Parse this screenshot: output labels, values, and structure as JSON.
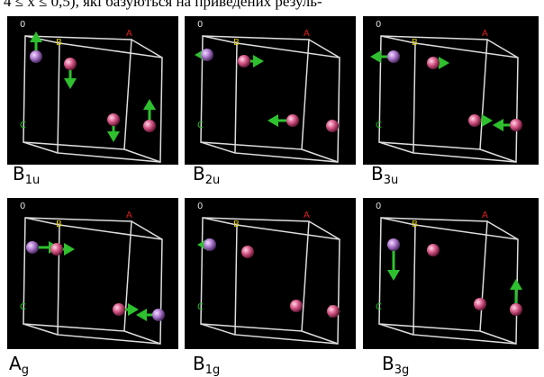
{
  "top_text": "4 ≤ x ≤ 0,5), які базуються на приведених резуль-",
  "axis_letters": {
    "origin": "0",
    "b": "B",
    "a": "A",
    "c": "C"
  },
  "panels": [
    {
      "label": "B",
      "sub": "1u"
    },
    {
      "label": "B",
      "sub": "2u"
    },
    {
      "label": "B",
      "sub": "3u"
    },
    {
      "label": "A",
      "sub": "g"
    },
    {
      "label": "B",
      "sub": "1g"
    },
    {
      "label": "B",
      "sub": "3g"
    }
  ]
}
